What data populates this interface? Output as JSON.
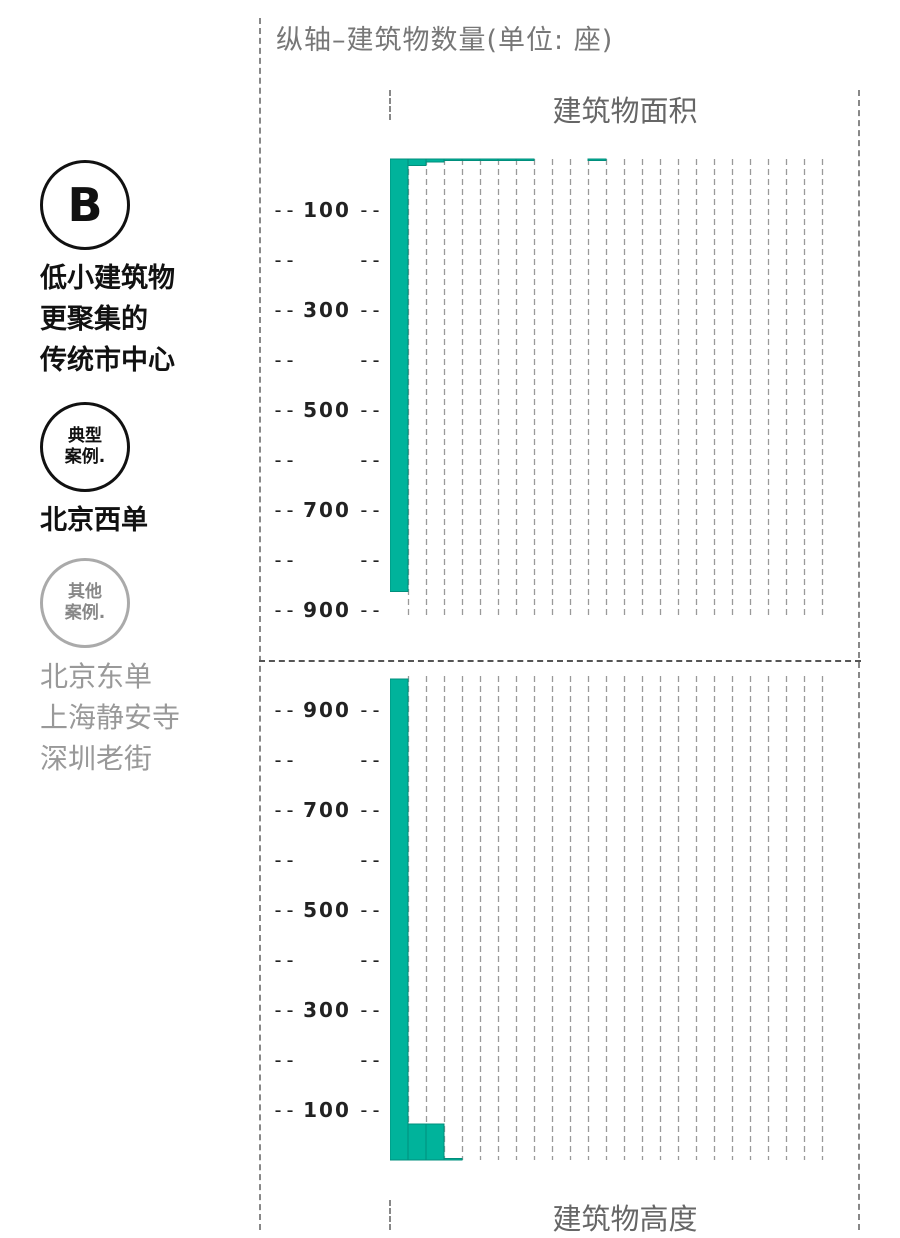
{
  "y_axis_title": "纵轴–建筑物数量(单位: 座)",
  "sidebar": {
    "badge_letter": "B",
    "heading_lines": [
      "低小建筑物",
      "更聚集的",
      "传统市中心"
    ],
    "typical_badge": [
      "典型",
      "案例."
    ],
    "typical_case": "北京西单",
    "other_badge": [
      "其他",
      "案例."
    ],
    "other_cases": [
      "北京东单",
      "上海静安寺",
      "深圳老街"
    ]
  },
  "colors": {
    "bar": "#00b39b",
    "bar_edge": "#008f7c",
    "grid": "#9a9a9a",
    "accent_text": "#111111"
  },
  "chart_data": [
    {
      "type": "bar",
      "title": "建筑物面积",
      "ylabel": "纵轴–建筑物数量(单位: 座)",
      "bins": 25,
      "values": [
        865,
        13,
        6,
        2,
        1,
        1,
        1,
        1,
        0,
        0,
        0,
        1,
        0,
        0,
        0,
        0,
        0,
        0,
        0,
        0,
        0,
        0,
        0,
        0,
        0
      ],
      "ylim": [
        0,
        1000
      ],
      "yticks": [
        100,
        200,
        300,
        400,
        500,
        600,
        700,
        800,
        900
      ],
      "tick_labels": [
        "100",
        "",
        "300",
        "",
        "500",
        "",
        "700",
        "",
        "900"
      ],
      "orientation": "downward",
      "grid": true
    },
    {
      "type": "bar",
      "title": "建筑物高度",
      "ylabel": "纵轴–建筑物数量(单位: 座)",
      "bins": 25,
      "values": [
        962,
        72,
        72,
        3,
        0,
        0,
        0,
        0,
        0,
        0,
        0,
        0,
        0,
        0,
        0,
        0,
        0,
        0,
        0,
        0,
        0,
        0,
        0,
        0,
        0
      ],
      "ylim": [
        0,
        1000
      ],
      "yticks": [
        900,
        800,
        700,
        600,
        500,
        400,
        300,
        200,
        100
      ],
      "tick_labels": [
        "900",
        "",
        "700",
        "",
        "500",
        "",
        "300",
        "",
        "100"
      ],
      "orientation": "upward",
      "grid": true
    }
  ]
}
